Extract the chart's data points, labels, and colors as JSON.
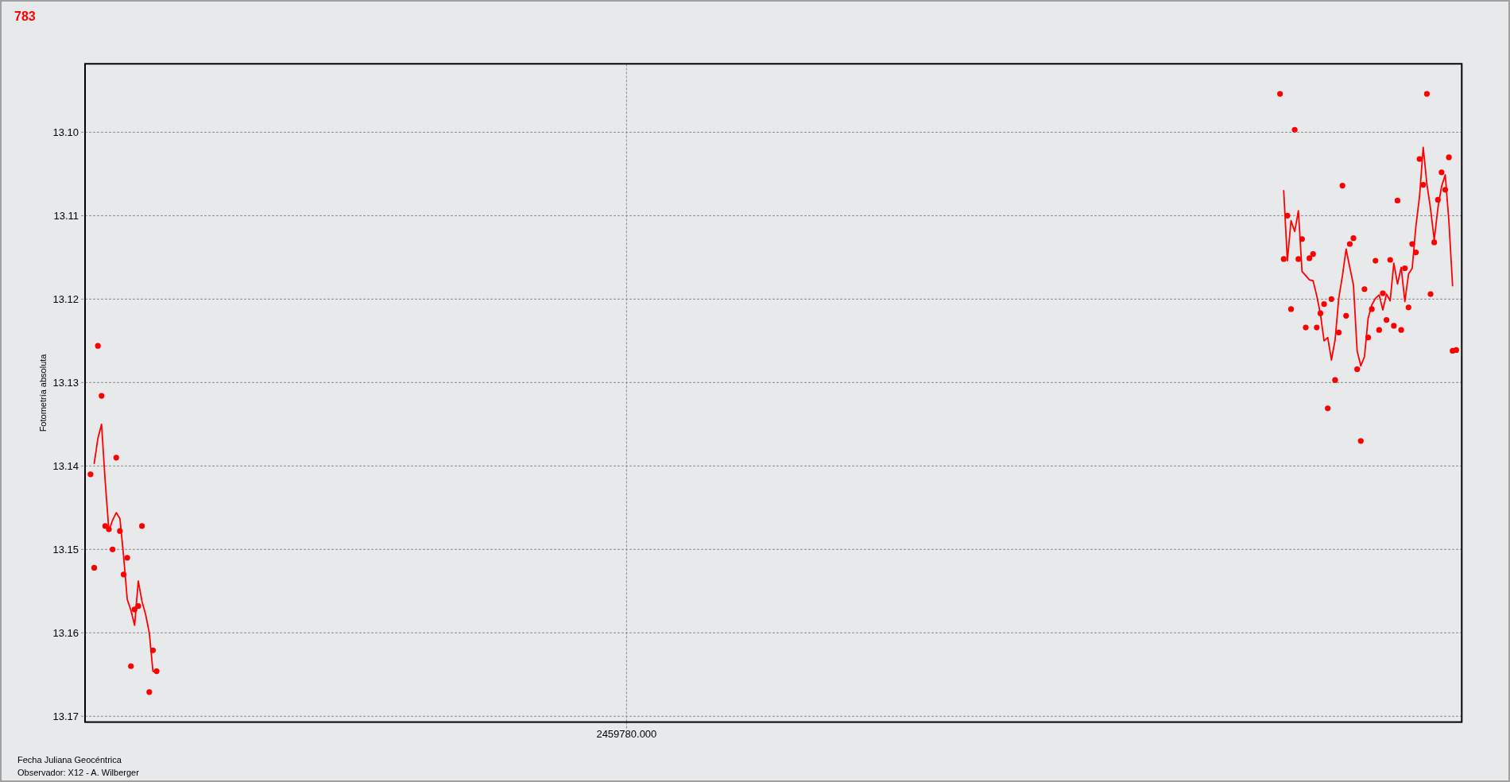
{
  "chart_data": {
    "type": "scatter",
    "title": "783",
    "xlabel": "Fecha Juliana Geocéntrica",
    "ylabel": "Fotometría absoluta",
    "annotations": [
      "Observador: X12 - A. Wilberger"
    ],
    "categories": [
      null,
      null,
      null,
      null,
      null,
      null,
      null,
      null,
      null,
      null,
      null,
      null,
      null,
      null,
      null,
      null,
      null,
      null,
      null,
      null,
      null,
      null,
      null,
      null,
      null,
      null,
      null,
      null,
      null,
      null,
      null,
      null,
      null,
      null,
      null,
      null,
      null,
      null,
      null,
      null,
      null,
      null,
      null,
      null,
      null,
      null,
      null,
      null,
      null,
      null,
      null,
      null,
      null,
      null,
      null,
      null,
      null,
      null,
      null,
      null,
      null,
      null,
      null,
      null,
      null,
      null,
      null,
      null,
      null,
      null,
      null,
      null,
      null,
      null,
      null,
      null,
      null,
      null,
      null,
      null,
      null,
      null,
      null,
      null,
      null,
      null,
      null,
      null,
      null,
      null,
      null,
      null,
      null,
      null,
      null,
      null,
      null,
      null,
      null,
      null,
      null,
      null,
      null,
      null,
      null,
      null,
      null,
      null,
      null,
      null,
      null,
      null,
      null,
      null,
      null,
      null,
      null,
      null,
      null,
      null,
      null,
      null,
      null,
      null,
      null,
      null,
      null,
      null,
      null,
      null,
      null,
      null,
      null,
      null,
      null,
      null,
      null,
      null,
      null,
      null,
      null,
      null,
      null,
      null,
      null,
      null,
      null,
      "2459780.000",
      null,
      null,
      null,
      null,
      null,
      null,
      null,
      null,
      null,
      null,
      null,
      null,
      null,
      null,
      null,
      null,
      null,
      null,
      null,
      null,
      null,
      null,
      null,
      null,
      null,
      null,
      null,
      null,
      null,
      null,
      null,
      null,
      null,
      null,
      null,
      null,
      null,
      null,
      null,
      null,
      null,
      null,
      null,
      null,
      null,
      null,
      null,
      null,
      null,
      null,
      null,
      null,
      null,
      null,
      null,
      null,
      null,
      null,
      null,
      null,
      null,
      null,
      null,
      null,
      null,
      null,
      null,
      null,
      null,
      null,
      null,
      null,
      null,
      null,
      null,
      null,
      null,
      null,
      null,
      null,
      null,
      null,
      null,
      null,
      null,
      null,
      null,
      null,
      null,
      null,
      null,
      null,
      null,
      null,
      null,
      null,
      null,
      null,
      null,
      null,
      null,
      null,
      null,
      null,
      null,
      null,
      null,
      null,
      null,
      null,
      null,
      null,
      null,
      null,
      null,
      null,
      null,
      null,
      null,
      null,
      null,
      null,
      null,
      null,
      null,
      null,
      null,
      null,
      null,
      null,
      null,
      null,
      null,
      null,
      null,
      null,
      null,
      null,
      null,
      null,
      null,
      null,
      null,
      null,
      null,
      null,
      null,
      null,
      null,
      null,
      null,
      null,
      null,
      null,
      null,
      null,
      null,
      null,
      null,
      null,
      null,
      null,
      null,
      null,
      null,
      null,
      null,
      null,
      null,
      null,
      null,
      null,
      null,
      null,
      null,
      null,
      null,
      null,
      null,
      null,
      null,
      null,
      null,
      null,
      null,
      null,
      null,
      null,
      null,
      null,
      null,
      null,
      null,
      null,
      null,
      null,
      null,
      null,
      null,
      null,
      null,
      null,
      null,
      null,
      null,
      null,
      null,
      null,
      null,
      null,
      null,
      null,
      null,
      null,
      null,
      null,
      null,
      null,
      null,
      null,
      null,
      null,
      null,
      null,
      null,
      null,
      null
    ],
    "ylim": [
      13.1707,
      13.0918
    ],
    "yticks": [
      {
        "value": 13.1,
        "label": "13.10"
      },
      {
        "value": 13.11,
        "label": "13.11"
      },
      {
        "value": 13.12,
        "label": "13.12"
      },
      {
        "value": 13.13,
        "label": "13.13"
      },
      {
        "value": 13.14,
        "label": "13.14"
      },
      {
        "value": 13.15,
        "label": "13.15"
      },
      {
        "value": 13.16,
        "label": "13.16"
      },
      {
        "value": 13.17,
        "label": "13.17"
      }
    ],
    "grid": true,
    "series": [
      {
        "color": "#ff0000",
        "marker": "circle",
        "values": [
          null,
          13.141,
          13.1522,
          13.1256,
          13.1316,
          13.1472,
          13.1476,
          13.15,
          13.139,
          13.1478,
          13.153,
          13.151,
          13.164,
          13.1572,
          13.1568,
          13.1472,
          null,
          13.1671,
          13.1621,
          13.1646,
          null,
          null,
          null,
          null,
          null,
          null,
          null,
          null,
          null,
          null,
          null,
          null,
          null,
          null,
          null,
          null,
          null,
          null,
          null,
          null,
          null,
          null,
          null,
          null,
          null,
          null,
          null,
          null,
          null,
          null,
          null,
          null,
          null,
          null,
          null,
          null,
          null,
          null,
          null,
          null,
          null,
          null,
          null,
          null,
          null,
          null,
          null,
          null,
          null,
          null,
          null,
          null,
          null,
          null,
          null,
          null,
          null,
          null,
          null,
          null,
          null,
          null,
          null,
          null,
          null,
          null,
          null,
          null,
          null,
          null,
          null,
          null,
          null,
          null,
          null,
          null,
          null,
          null,
          null,
          null,
          null,
          null,
          null,
          null,
          null,
          null,
          null,
          null,
          null,
          null,
          null,
          null,
          null,
          null,
          null,
          null,
          null,
          null,
          null,
          null,
          null,
          null,
          null,
          null,
          null,
          null,
          null,
          null,
          null,
          null,
          null,
          null,
          null,
          null,
          null,
          null,
          null,
          null,
          null,
          null,
          null,
          null,
          null,
          null,
          null,
          null,
          null,
          null,
          null,
          null,
          null,
          null,
          null,
          null,
          null,
          null,
          null,
          null,
          null,
          null,
          null,
          null,
          null,
          null,
          null,
          null,
          null,
          null,
          null,
          null,
          null,
          null,
          null,
          null,
          null,
          null,
          null,
          null,
          null,
          null,
          null,
          null,
          null,
          null,
          null,
          null,
          null,
          null,
          null,
          null,
          null,
          null,
          null,
          null,
          null,
          null,
          null,
          null,
          null,
          null,
          null,
          null,
          null,
          null,
          null,
          null,
          null,
          null,
          null,
          null,
          null,
          null,
          null,
          null,
          null,
          null,
          null,
          null,
          null,
          null,
          null,
          null,
          null,
          null,
          null,
          null,
          null,
          null,
          null,
          null,
          null,
          null,
          null,
          null,
          null,
          null,
          null,
          null,
          null,
          null,
          null,
          null,
          null,
          null,
          null,
          null,
          null,
          null,
          null,
          null,
          null,
          null,
          null,
          null,
          null,
          null,
          null,
          null,
          null,
          null,
          null,
          null,
          null,
          null,
          null,
          null,
          null,
          null,
          null,
          null,
          null,
          null,
          null,
          null,
          null,
          null,
          null,
          null,
          null,
          null,
          null,
          null,
          null,
          null,
          null,
          null,
          null,
          null,
          null,
          null,
          null,
          null,
          null,
          null,
          null,
          null,
          null,
          null,
          null,
          null,
          null,
          null,
          null,
          null,
          null,
          null,
          null,
          null,
          null,
          null,
          null,
          null,
          null,
          null,
          null,
          null,
          null,
          null,
          null,
          null,
          null,
          null,
          null,
          null,
          null,
          13.0954,
          13.1152,
          13.11,
          13.1212,
          13.0997,
          13.1152,
          13.1128,
          13.1234,
          13.1151,
          13.1146,
          13.1234,
          13.1217,
          13.1206,
          13.1331,
          13.12,
          13.1297,
          13.124,
          13.1064,
          13.122,
          13.1134,
          13.1127,
          13.1284,
          13.137,
          13.1188,
          13.1246,
          13.1212,
          13.1154,
          13.1237,
          13.1193,
          13.1225,
          13.1153,
          13.1232,
          13.1082,
          13.1237,
          13.1163,
          13.121,
          13.1134,
          13.1144,
          13.1032,
          13.1063,
          13.0954,
          13.1194,
          13.1132,
          13.1081,
          13.1048,
          13.1069,
          13.103,
          13.1262,
          13.1261,
          null
        ]
      },
      {
        "type": "line",
        "color": "#ff0000",
        "line_style": "solid",
        "values": [
          null,
          null,
          13.1397,
          13.1367,
          13.135,
          13.1419,
          13.1478,
          13.1465,
          13.1456,
          13.1463,
          13.1508,
          13.156,
          13.1573,
          13.1591,
          13.1538,
          13.1562,
          13.1578,
          13.16,
          13.1646,
          13.1647,
          null,
          null,
          null,
          null,
          null,
          null,
          null,
          null,
          null,
          null,
          null,
          null,
          null,
          null,
          null,
          null,
          null,
          null,
          null,
          null,
          null,
          null,
          null,
          null,
          null,
          null,
          null,
          null,
          null,
          null,
          null,
          null,
          null,
          null,
          null,
          null,
          null,
          null,
          null,
          null,
          null,
          null,
          null,
          null,
          null,
          null,
          null,
          null,
          null,
          null,
          null,
          null,
          null,
          null,
          null,
          null,
          null,
          null,
          null,
          null,
          null,
          null,
          null,
          null,
          null,
          null,
          null,
          null,
          null,
          null,
          null,
          null,
          null,
          null,
          null,
          null,
          null,
          null,
          null,
          null,
          null,
          null,
          null,
          null,
          null,
          null,
          null,
          null,
          null,
          null,
          null,
          null,
          null,
          null,
          null,
          null,
          null,
          null,
          null,
          null,
          null,
          null,
          null,
          null,
          null,
          null,
          null,
          null,
          null,
          null,
          null,
          null,
          null,
          null,
          null,
          null,
          null,
          null,
          null,
          null,
          null,
          null,
          null,
          null,
          null,
          null,
          null,
          null,
          null,
          null,
          null,
          null,
          null,
          null,
          null,
          null,
          null,
          null,
          null,
          null,
          null,
          null,
          null,
          null,
          null,
          null,
          null,
          null,
          null,
          null,
          null,
          null,
          null,
          null,
          null,
          null,
          null,
          null,
          null,
          null,
          null,
          null,
          null,
          null,
          null,
          null,
          null,
          null,
          null,
          null,
          null,
          null,
          null,
          null,
          null,
          null,
          null,
          null,
          null,
          null,
          null,
          null,
          null,
          null,
          null,
          null,
          null,
          null,
          null,
          null,
          null,
          null,
          null,
          null,
          null,
          null,
          null,
          null,
          null,
          null,
          null,
          null,
          null,
          null,
          null,
          null,
          null,
          null,
          null,
          null,
          null,
          null,
          null,
          null,
          null,
          null,
          null,
          null,
          null,
          null,
          null,
          null,
          null,
          null,
          null,
          null,
          null,
          null,
          null,
          null,
          null,
          null,
          null,
          null,
          null,
          null,
          null,
          null,
          null,
          null,
          null,
          null,
          null,
          null,
          null,
          null,
          null,
          null,
          null,
          null,
          null,
          null,
          null,
          null,
          null,
          null,
          null,
          null,
          null,
          null,
          null,
          null,
          null,
          null,
          null,
          null,
          null,
          null,
          null,
          null,
          null,
          null,
          null,
          null,
          null,
          null,
          null,
          null,
          null,
          null,
          null,
          null,
          null,
          null,
          null,
          null,
          null,
          null,
          null,
          null,
          null,
          null,
          null,
          null,
          null,
          null,
          null,
          null,
          null,
          null,
          null,
          null,
          null,
          null,
          null,
          null,
          13.107,
          13.1154,
          13.1106,
          13.1119,
          13.1094,
          13.1167,
          13.1172,
          13.1177,
          13.1178,
          13.1196,
          13.1218,
          13.125,
          13.1246,
          13.1273,
          13.1249,
          13.1199,
          13.1172,
          13.114,
          13.1162,
          13.1183,
          13.1262,
          13.128,
          13.1269,
          13.1223,
          13.1207,
          13.1199,
          13.1195,
          13.1213,
          13.1194,
          13.1202,
          13.1157,
          13.1182,
          13.1162,
          13.1203,
          13.117,
          13.1163,
          13.1113,
          13.1077,
          13.1018,
          13.1062,
          13.1092,
          13.1129,
          13.1091,
          13.1065,
          13.1051,
          13.1107,
          13.1184,
          null,
          null
        ]
      }
    ]
  }
}
